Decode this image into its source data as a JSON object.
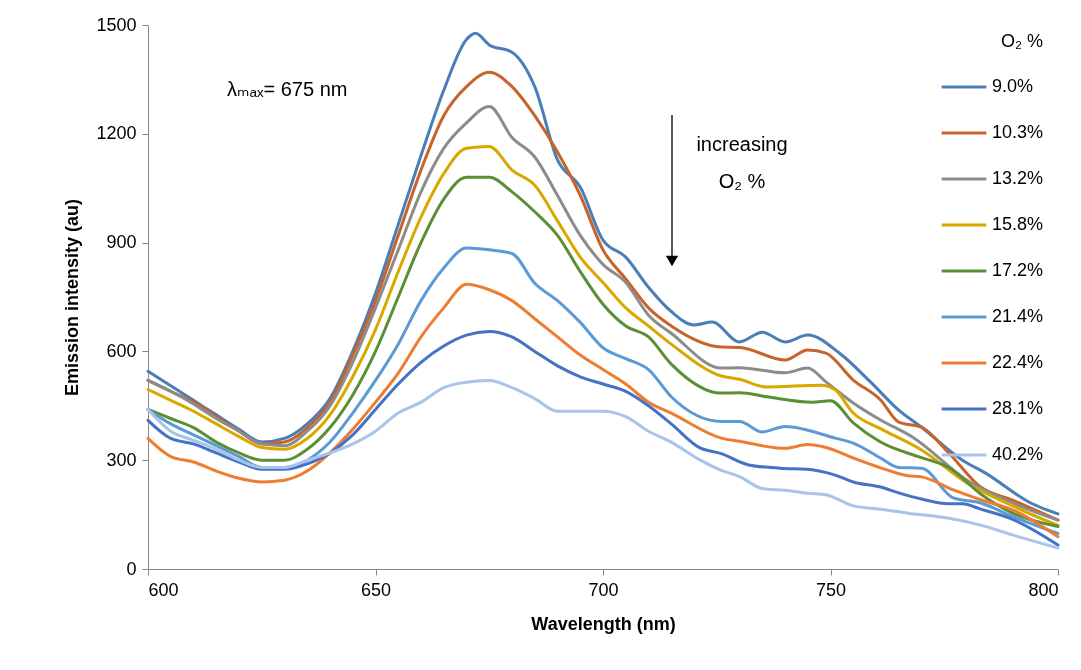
{
  "chart_data": {
    "type": "line",
    "xlabel": "Wavelength (nm)",
    "ylabel": "Emission intensity (au)",
    "legend_title": "O₂ %",
    "legend": "top right",
    "xlim": [
      600,
      800
    ],
    "xticks": [
      600,
      650,
      700,
      750,
      800
    ],
    "ylim": [
      0,
      1500
    ],
    "yticks": [
      0,
      300,
      600,
      900,
      1200,
      1500
    ],
    "annotations": [
      "λₘₐₓ= 675 nm",
      "increasing\nO₂ %"
    ],
    "series": [
      {
        "name": "9.0%",
        "color": "#4a7eb8",
        "x": [
          600,
          605,
          610,
          615,
          620,
          625,
          630,
          635,
          640,
          645,
          650,
          655,
          660,
          665,
          670,
          672,
          675,
          680,
          685,
          690,
          695,
          700,
          705,
          710,
          715,
          720,
          724,
          730,
          735,
          740,
          745,
          752,
          759,
          765,
          770,
          779,
          784,
          794,
          800
        ],
        "values": [
          545,
          505,
          465,
          425,
          385,
          350,
          360,
          400,
          470,
          600,
          760,
          950,
          1140,
          1320,
          1460,
          1477,
          1445,
          1425,
          1330,
          1128,
          1053,
          907,
          860,
          777,
          710,
          673,
          681,
          626,
          653,
          626,
          645,
          595,
          513,
          438,
          391,
          300,
          265,
          182,
          152
        ]
      },
      {
        "name": "10.3%",
        "color": "#c8632a",
        "x": [
          600,
          605,
          610,
          615,
          620,
          625,
          630,
          635,
          640,
          645,
          650,
          655,
          660,
          665,
          670,
          675,
          680,
          685,
          690,
          695,
          700,
          705,
          710,
          715,
          726,
          730,
          740,
          745,
          749,
          755,
          761,
          765,
          770,
          776,
          783,
          790,
          800
        ],
        "values": [
          520,
          490,
          460,
          420,
          380,
          345,
          350,
          390,
          460,
          590,
          740,
          920,
          1100,
          1250,
          1330,
          1370,
          1330,
          1250,
          1150,
          1030,
          880,
          800,
          720,
          670,
          612,
          611,
          576,
          604,
          595,
          521,
          466,
          405,
          391,
          320,
          226,
          190,
          135
        ]
      },
      {
        "name": "13.2%",
        "color": "#8c8c8c",
        "x": [
          600,
          605,
          610,
          615,
          620,
          625,
          630,
          635,
          640,
          645,
          650,
          655,
          660,
          665,
          670,
          675,
          680,
          685,
          690,
          695,
          700,
          705,
          710,
          715,
          726,
          730,
          740,
          745,
          749,
          755,
          761,
          768,
          780,
          790,
          800
        ],
        "values": [
          520,
          490,
          455,
          415,
          380,
          345,
          340,
          380,
          450,
          570,
          720,
          880,
          1040,
          1160,
          1230,
          1275,
          1190,
          1136,
          1030,
          920,
          840,
          790,
          700,
          650,
          554,
          555,
          541,
          554,
          516,
          458,
          411,
          364,
          245,
          182,
          135
        ]
      },
      {
        "name": "15.8%",
        "color": "#d9a800",
        "x": [
          600,
          605,
          610,
          615,
          620,
          625,
          630,
          635,
          640,
          645,
          650,
          655,
          660,
          665,
          670,
          675,
          680,
          685,
          690,
          695,
          700,
          705,
          710,
          715,
          726,
          730,
          736,
          748,
          751,
          755,
          761,
          770,
          780,
          790,
          800
        ],
        "values": [
          495,
          465,
          435,
          400,
          365,
          335,
          330,
          360,
          425,
          530,
          660,
          820,
          970,
          1090,
          1160,
          1165,
          1100,
          1058,
          960,
          860,
          790,
          720,
          670,
          620,
          532,
          523,
          502,
          507,
          494,
          430,
          387,
          328,
          237,
          174,
          120
        ]
      },
      {
        "name": "17.2%",
        "color": "#5b8f35",
        "x": [
          600,
          605,
          610,
          615,
          620,
          625,
          630,
          635,
          640,
          645,
          650,
          655,
          660,
          665,
          670,
          675,
          680,
          685,
          690,
          695,
          700,
          705,
          710,
          715,
          726,
          730,
          736,
          746,
          750,
          755,
          761,
          770,
          776,
          783,
          790,
          800
        ],
        "values": [
          440,
          415,
          390,
          350,
          320,
          300,
          300,
          330,
          390,
          480,
          600,
          750,
          900,
          1020,
          1080,
          1080,
          1040,
          985,
          920,
          820,
          730,
          670,
          640,
          565,
          485,
          486,
          475,
          460,
          464,
          403,
          350,
          307,
          280,
          207,
          154,
          117
        ]
      },
      {
        "name": "21.4%",
        "color": "#5b9bd5",
        "x": [
          600,
          605,
          610,
          615,
          620,
          625,
          630,
          635,
          640,
          645,
          650,
          655,
          660,
          665,
          670,
          675,
          680,
          685,
          690,
          695,
          700,
          705,
          710,
          715,
          726,
          730,
          735,
          740,
          751,
          755,
          761,
          765,
          770,
          777,
          783,
          790,
          800
        ],
        "values": [
          440,
          400,
          370,
          340,
          310,
          280,
          280,
          300,
          350,
          430,
          520,
          620,
          740,
          830,
          885,
          880,
          870,
          788,
          740,
          680,
          610,
          580,
          550,
          475,
          407,
          407,
          378,
          393,
          361,
          347,
          306,
          280,
          278,
          196,
          182,
          145,
          98
        ]
      },
      {
        "name": "22.4%",
        "color": "#ed7d31",
        "x": [
          600,
          605,
          610,
          615,
          620,
          625,
          630,
          635,
          640,
          645,
          650,
          655,
          660,
          665,
          670,
          675,
          680,
          685,
          690,
          695,
          700,
          705,
          710,
          715,
          726,
          730,
          740,
          745,
          749,
          755,
          761,
          767,
          770,
          777,
          783,
          790,
          800
        ],
        "values": [
          360,
          310,
          295,
          270,
          250,
          240,
          245,
          270,
          320,
          385,
          460,
          540,
          640,
          720,
          785,
          770,
          740,
          690,
          640,
          590,
          550,
          510,
          460,
          430,
          361,
          352,
          333,
          343,
          335,
          306,
          279,
          257,
          254,
          218,
          191,
          163,
          89
        ]
      },
      {
        "name": "28.1%",
        "color": "#4472c4",
        "x": [
          600,
          605,
          610,
          615,
          620,
          625,
          630,
          635,
          640,
          645,
          650,
          655,
          660,
          665,
          670,
          675,
          680,
          685,
          690,
          695,
          700,
          705,
          710,
          715,
          721,
          726,
          732,
          739,
          745,
          751,
          755,
          761,
          765,
          770,
          776,
          779,
          783,
          790,
          800
        ],
        "values": [
          410,
          360,
          345,
          320,
          295,
          275,
          275,
          290,
          320,
          370,
          440,
          510,
          570,
          615,
          645,
          655,
          640,
          600,
          560,
          530,
          510,
          490,
          450,
          400,
          336,
          318,
          287,
          278,
          275,
          259,
          240,
          226,
          210,
          193,
          180,
          180,
          165,
          137,
          66
        ]
      },
      {
        "name": "40.2%",
        "color": "#a9c4e8",
        "x": [
          600,
          605,
          610,
          615,
          620,
          625,
          630,
          635,
          640,
          645,
          650,
          655,
          660,
          665,
          670,
          675,
          680,
          685,
          690,
          695,
          700,
          705,
          710,
          715,
          721,
          726,
          730,
          735,
          740,
          745,
          749,
          755,
          761,
          767,
          776,
          783,
          790,
          800
        ],
        "values": [
          440,
          380,
          355,
          330,
          300,
          280,
          280,
          300,
          320,
          345,
          380,
          430,
          460,
          500,
          515,
          520,
          500,
          470,
          435,
          435,
          435,
          420,
          380,
          350,
          303,
          272,
          255,
          222,
          217,
          209,
          205,
          174,
          165,
          154,
          140,
          121,
          94,
          58
        ]
      }
    ]
  }
}
